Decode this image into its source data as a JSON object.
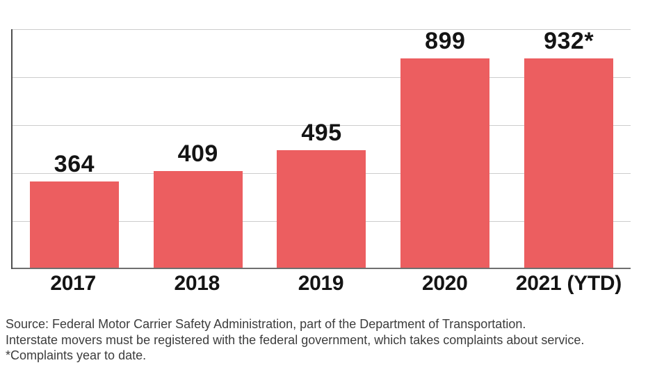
{
  "chart_data": {
    "type": "bar",
    "title": "",
    "xlabel": "",
    "ylabel": "",
    "categories": [
      "2017",
      "2018",
      "2019",
      "2020",
      "2021 (YTD)"
    ],
    "values": [
      364,
      409,
      495,
      899,
      932
    ],
    "value_labels": [
      "364",
      "409",
      "495",
      "899",
      "932*"
    ],
    "ylim": [
      0,
      1000
    ],
    "gridline_step": 200,
    "grid": true,
    "legend_position": "none",
    "bar_color": "#ec5e60",
    "gridline_color": "#cccccc",
    "axis_line_color": "#4f4f4f",
    "baseline_color": "#6f6f6f",
    "label_color": "#141414"
  },
  "footer": {
    "source_line": "Source: Federal Motor Carrier Safety Administration, part of the Department of Transportation.",
    "registration_line": "Interstate movers must be registered with the federal government, which takes complaints about service.",
    "footnote_line": "*Complaints year to date."
  }
}
